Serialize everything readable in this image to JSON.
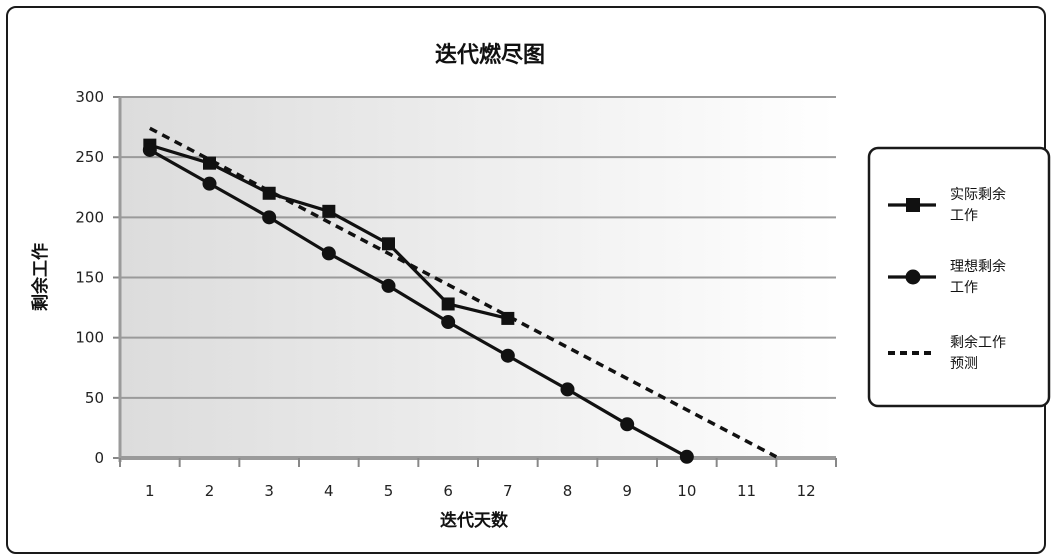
{
  "chart_data": {
    "type": "line",
    "title": "迭代燃尽图",
    "xlabel": "迭代天数",
    "ylabel": "剩余工作",
    "x": [
      1,
      2,
      3,
      4,
      5,
      6,
      7,
      8,
      9,
      10,
      11,
      12
    ],
    "x_tick_labels": [
      "1",
      "2",
      "3",
      "4",
      "5",
      "6",
      "7",
      "8",
      "9",
      "10",
      "11",
      "12"
    ],
    "xlim": [
      0.5,
      12.5
    ],
    "ylim": [
      0,
      300
    ],
    "y_ticks": [
      0,
      50,
      100,
      150,
      200,
      250,
      300
    ],
    "grid": true,
    "legend_position": "right",
    "series": [
      {
        "name": "实际剩余工作",
        "name_lines": [
          "实际剩余",
          "工作"
        ],
        "style": "solid",
        "marker": "square",
        "color": "#111111",
        "points": [
          [
            1,
            260
          ],
          [
            2,
            245
          ],
          [
            3,
            220
          ],
          [
            4,
            205
          ],
          [
            5,
            178
          ],
          [
            6,
            128
          ],
          [
            7,
            116
          ]
        ]
      },
      {
        "name": "理想剩余工作",
        "name_lines": [
          "理想剩余",
          "工作"
        ],
        "style": "solid",
        "marker": "circle",
        "color": "#111111",
        "points": [
          [
            1,
            256
          ],
          [
            2,
            228
          ],
          [
            3,
            200
          ],
          [
            4,
            170
          ],
          [
            5,
            143
          ],
          [
            6,
            113
          ],
          [
            7,
            85
          ],
          [
            8,
            57
          ],
          [
            9,
            28
          ],
          [
            10,
            1
          ]
        ]
      },
      {
        "name": "剩余工作预测",
        "name_lines": [
          "剩余工作",
          "预测"
        ],
        "style": "dashed",
        "marker": "none",
        "color": "#111111",
        "points": [
          [
            1,
            274
          ],
          [
            11.5,
            1
          ]
        ]
      }
    ]
  }
}
